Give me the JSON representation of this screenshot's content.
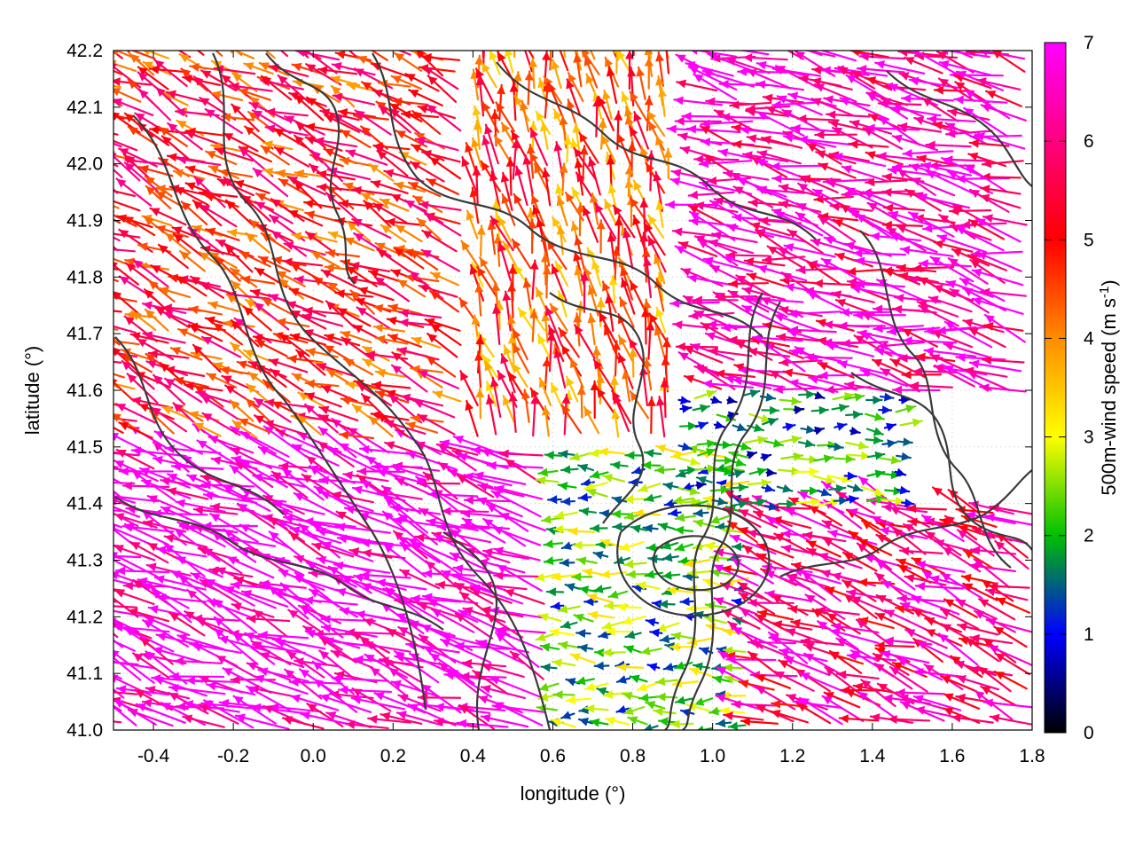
{
  "chart_data": {
    "type": "vector-field",
    "xlabel": "longitude (°)",
    "ylabel": "latitude (°)",
    "xlim": [
      -0.5,
      1.8
    ],
    "ylim": [
      41.0,
      42.2
    ],
    "x_ticks": [
      "-0.4",
      "-0.2",
      "0.0",
      "0.2",
      "0.4",
      "0.6",
      "0.8",
      "1.0",
      "1.2",
      "1.4",
      "1.6",
      "1.8"
    ],
    "x_tick_values": [
      -0.4,
      -0.2,
      0.0,
      0.2,
      0.4,
      0.6,
      0.8,
      1.0,
      1.2,
      1.4,
      1.6,
      1.8
    ],
    "y_ticks": [
      "41.0",
      "41.1",
      "41.2",
      "41.3",
      "41.4",
      "41.5",
      "41.6",
      "41.7",
      "41.8",
      "41.9",
      "42.0",
      "42.1",
      "42.2"
    ],
    "y_tick_values": [
      41.0,
      41.1,
      41.2,
      41.3,
      41.4,
      41.5,
      41.6,
      41.7,
      41.8,
      41.9,
      42.0,
      42.1,
      42.2
    ],
    "grid": true,
    "colorbar": {
      "label": "500m-wind speed (m s",
      "label_sup": "-1",
      "label_end": ")",
      "range": [
        0,
        7
      ],
      "ticks": [
        "0",
        "1",
        "2",
        "3",
        "4",
        "5",
        "6",
        "7"
      ],
      "tick_values": [
        0,
        1,
        2,
        3,
        4,
        5,
        6,
        7
      ],
      "colors": [
        "#000000",
        "#0000ff",
        "#00c000",
        "#ffff00",
        "#ff8c00",
        "#ff0000",
        "#ff00ff"
      ]
    },
    "vector_regions": [
      {
        "lon": [
          -0.5,
          0.6
        ],
        "lat": [
          41.0,
          41.5
        ],
        "speed": 7.0,
        "direction_deg": 160
      },
      {
        "lon": [
          -0.5,
          0.4
        ],
        "lat": [
          41.5,
          42.2
        ],
        "speed": 5.0,
        "direction_deg": 155
      },
      {
        "lon": [
          0.4,
          0.9
        ],
        "lat": [
          41.5,
          42.2
        ],
        "speed": 4.5,
        "direction_deg": 105
      },
      {
        "lon": [
          0.6,
          1.1
        ],
        "lat": [
          41.0,
          41.5
        ],
        "speed": 2.2,
        "direction_deg": 180
      },
      {
        "lon": [
          1.1,
          1.8
        ],
        "lat": [
          41.0,
          41.4
        ],
        "speed": 6.0,
        "direction_deg": 160
      },
      {
        "lon": [
          1.0,
          1.8
        ],
        "lat": [
          41.6,
          42.2
        ],
        "speed": 6.5,
        "direction_deg": 165
      },
      {
        "lon": [
          0.9,
          1.5
        ],
        "lat": [
          41.4,
          41.6
        ],
        "speed": 1.8,
        "direction_deg": 0
      }
    ]
  }
}
